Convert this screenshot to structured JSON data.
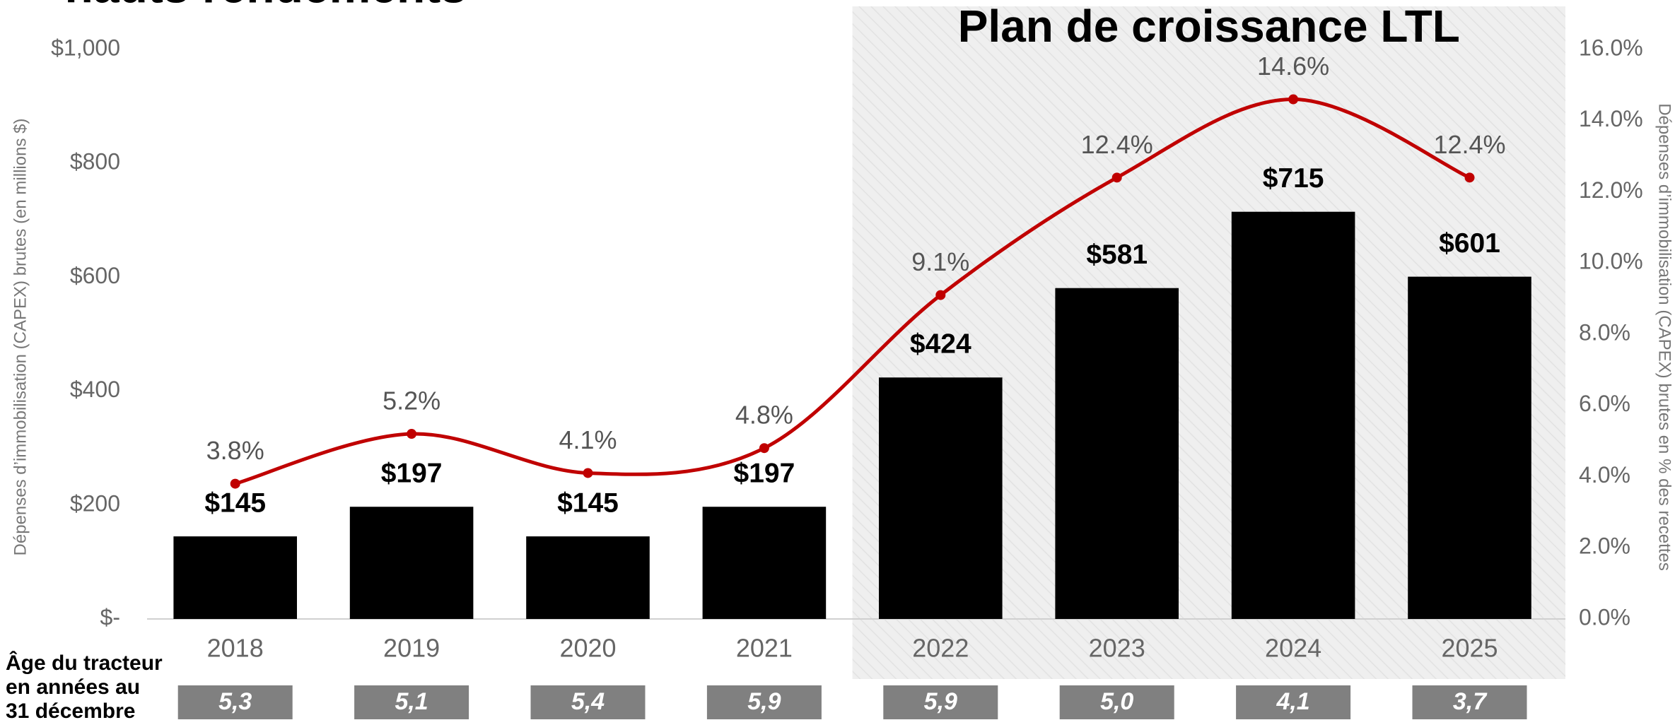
{
  "chart_data": {
    "type": "bar_line",
    "heading": "hauts rendements",
    "title": "Plan de croissance LTL",
    "categories": [
      "2018",
      "2019",
      "2020",
      "2021",
      "2022",
      "2023",
      "2024",
      "2025"
    ],
    "series": [
      {
        "type": "bar",
        "color": "#000000",
        "values": [
          145,
          197,
          145,
          197,
          424,
          581,
          715,
          601
        ],
        "value_labels": [
          "$145",
          "$197",
          "$145",
          "$197",
          "$424",
          "$581",
          "$715",
          "$601"
        ]
      },
      {
        "type": "line",
        "axis": "y2",
        "color": "#c00000",
        "values": [
          3.8,
          5.2,
          4.1,
          4.8,
          9.1,
          12.4,
          14.6,
          12.4
        ],
        "value_labels": [
          "3.8%",
          "5.2%",
          "4.1%",
          "4.8%",
          "9.1%",
          "12.4%",
          "14.6%",
          "12.4%"
        ]
      }
    ],
    "ylabel": "Dépenses d’immobilisation (CAPEX) brutes (en millions $)",
    "y2label": "Dépenses d’immobilisation (CAPEX) brutes en % des recettes",
    "ylim": [
      0,
      1000
    ],
    "yticks": [
      {
        "value": 0,
        "label": "$-"
      },
      {
        "value": 200,
        "label": "$200"
      },
      {
        "value": 400,
        "label": "$400"
      },
      {
        "value": 600,
        "label": "$600"
      },
      {
        "value": 800,
        "label": "$800"
      },
      {
        "value": 1000,
        "label": "$1,000"
      }
    ],
    "y2lim": [
      0,
      16
    ],
    "y2ticks": [
      {
        "value": 0,
        "label": "0.0%"
      },
      {
        "value": 2,
        "label": "2.0%"
      },
      {
        "value": 4,
        "label": "4.0%"
      },
      {
        "value": 6,
        "label": "6.0%"
      },
      {
        "value": 8,
        "label": "8.0%"
      },
      {
        "value": 10,
        "label": "10.0%"
      },
      {
        "value": 12,
        "label": "12.0%"
      },
      {
        "value": 14,
        "label": "14.0%"
      },
      {
        "value": 16,
        "label": "16.0%"
      }
    ],
    "tractor_age": {
      "label": [
        "Âge du tracteur",
        "en années au",
        "31 décembre"
      ],
      "values": [
        "5,3",
        "5,1",
        "5,4",
        "5,9",
        "5,9",
        "5,0",
        "4,1",
        "3,7"
      ]
    }
  }
}
